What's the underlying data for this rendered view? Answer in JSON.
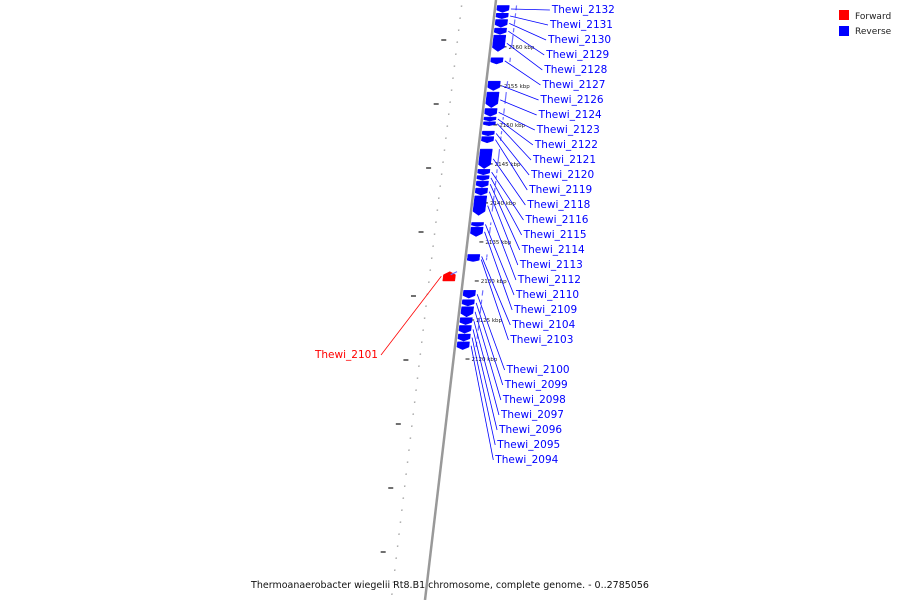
{
  "colors": {
    "forward": "#ff0000",
    "reverse": "#0000ff",
    "backbone": "#999999"
  },
  "legend": {
    "forward_label": "Forward",
    "reverse_label": "Reverse"
  },
  "caption": "Thermoanaerobacter wiegelii Rt8.B1 chromosome, complete genome. - 0..2785056",
  "ticks": [
    {
      "label": "2160 kbp",
      "pos_kbp": 2160
    },
    {
      "label": "2155 kbp",
      "pos_kbp": 2155
    },
    {
      "label": "2150 kbp",
      "pos_kbp": 2150
    },
    {
      "label": "2145 kbp",
      "pos_kbp": 2145
    },
    {
      "label": "2140 kbp",
      "pos_kbp": 2140
    },
    {
      "label": "2135 kbp",
      "pos_kbp": 2135
    },
    {
      "label": "2130 kbp",
      "pos_kbp": 2130
    },
    {
      "label": "2125 kbp",
      "pos_kbp": 2125
    },
    {
      "label": "2120 kbp",
      "pos_kbp": 2120
    }
  ],
  "genes": [
    {
      "name": "Thewi_2132",
      "strand": "reverse",
      "start_kbp": 2165.3,
      "end_kbp": 2164.4
    },
    {
      "name": "Thewi_2131",
      "strand": "reverse",
      "start_kbp": 2164.3,
      "end_kbp": 2163.6
    },
    {
      "name": "Thewi_2130",
      "strand": "reverse",
      "start_kbp": 2163.5,
      "end_kbp": 2162.5
    },
    {
      "name": "Thewi_2129",
      "strand": "reverse",
      "start_kbp": 2162.4,
      "end_kbp": 2161.6
    },
    {
      "name": "Thewi_2128",
      "strand": "reverse",
      "start_kbp": 2161.5,
      "end_kbp": 2159.4
    },
    {
      "name": "Thewi_2127",
      "strand": "reverse",
      "start_kbp": 2158.6,
      "end_kbp": 2157.8
    },
    {
      "name": "Thewi_2126",
      "strand": "reverse",
      "start_kbp": 2155.6,
      "end_kbp": 2154.4
    },
    {
      "name": "Thewi_2124",
      "strand": "reverse",
      "start_kbp": 2154.2,
      "end_kbp": 2152.2
    },
    {
      "name": "Thewi_2123",
      "strand": "reverse",
      "start_kbp": 2152.1,
      "end_kbp": 2151.1
    },
    {
      "name": "Thewi_2122",
      "strand": "reverse",
      "start_kbp": 2151.0,
      "end_kbp": 2150.5
    },
    {
      "name": "Thewi_2121",
      "strand": "reverse",
      "start_kbp": 2150.4,
      "end_kbp": 2149.9
    },
    {
      "name": "Thewi_2120",
      "strand": "reverse",
      "start_kbp": 2149.2,
      "end_kbp": 2148.6
    },
    {
      "name": "Thewi_2119",
      "strand": "reverse",
      "start_kbp": 2148.5,
      "end_kbp": 2147.7
    },
    {
      "name": "Thewi_2118",
      "strand": "reverse",
      "start_kbp": 2146.9,
      "end_kbp": 2144.4
    },
    {
      "name": "Thewi_2116",
      "strand": "reverse",
      "start_kbp": 2144.3,
      "end_kbp": 2143.6
    },
    {
      "name": "Thewi_2115",
      "strand": "reverse",
      "start_kbp": 2143.5,
      "end_kbp": 2142.9
    },
    {
      "name": "Thewi_2114",
      "strand": "reverse",
      "start_kbp": 2142.8,
      "end_kbp": 2142.0
    },
    {
      "name": "Thewi_2113",
      "strand": "reverse",
      "start_kbp": 2141.9,
      "end_kbp": 2141.0
    },
    {
      "name": "Thewi_2112",
      "strand": "reverse",
      "start_kbp": 2140.9,
      "end_kbp": 2138.4
    },
    {
      "name": "Thewi_2110",
      "strand": "reverse",
      "start_kbp": 2137.5,
      "end_kbp": 2137.0
    },
    {
      "name": "Thewi_2109",
      "strand": "reverse",
      "start_kbp": 2136.9,
      "end_kbp": 2135.7
    },
    {
      "name": "Thewi_2104",
      "strand": "reverse",
      "start_kbp": 2133.4,
      "end_kbp": 2133.1
    },
    {
      "name": "Thewi_2103",
      "strand": "reverse",
      "start_kbp": 2133.0,
      "end_kbp": 2132.6
    },
    {
      "name": "Thewi_2101",
      "strand": "forward",
      "start_kbp": 2130.0,
      "end_kbp": 2131.2
    },
    {
      "name": "Thewi_2100",
      "strand": "reverse",
      "start_kbp": 2128.8,
      "end_kbp": 2127.8
    },
    {
      "name": "Thewi_2099",
      "strand": "reverse",
      "start_kbp": 2127.6,
      "end_kbp": 2126.8
    },
    {
      "name": "Thewi_2098",
      "strand": "reverse",
      "start_kbp": 2126.7,
      "end_kbp": 2125.4
    },
    {
      "name": "Thewi_2097",
      "strand": "reverse",
      "start_kbp": 2125.3,
      "end_kbp": 2124.4
    },
    {
      "name": "Thewi_2096",
      "strand": "reverse",
      "start_kbp": 2124.3,
      "end_kbp": 2123.3
    },
    {
      "name": "Thewi_2095",
      "strand": "reverse",
      "start_kbp": 2123.2,
      "end_kbp": 2122.3
    },
    {
      "name": "Thewi_2094",
      "strand": "reverse",
      "start_kbp": 2122.2,
      "end_kbp": 2121.2
    }
  ]
}
